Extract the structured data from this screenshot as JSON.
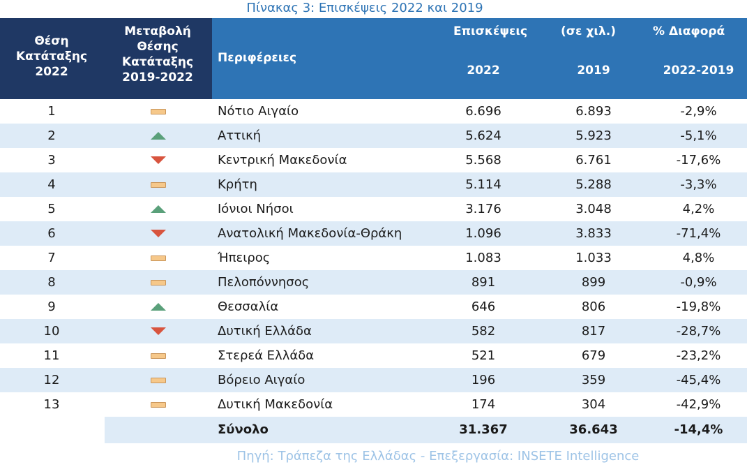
{
  "title": "Πίνακας 3: Επισκέψεις 2022 και 2019",
  "header": {
    "rank_line1": "Θέση",
    "rank_line2": "Κατάταξης",
    "rank_line3": "2022",
    "change_line1": "Μεταβολή",
    "change_line2": "Θέσης",
    "change_line3": "Κατάταξης",
    "change_line4": "2019-2022",
    "region": "Περιφέρειες",
    "visits": "Επισκέψεις",
    "thousands": "(σε χιλ.)",
    "diff": "% Διαφορά",
    "year_2022": "2022",
    "year_2019": "2019",
    "diff_period": "2022-2019"
  },
  "rows": [
    {
      "rank": "1",
      "change": "equal",
      "region": "Νότιο Αιγαίο",
      "v2022": "6.696",
      "v2019": "6.893",
      "diff": "-2,9%"
    },
    {
      "rank": "2",
      "change": "up",
      "region": "Αττική",
      "v2022": "5.624",
      "v2019": "5.923",
      "diff": "-5,1%"
    },
    {
      "rank": "3",
      "change": "down",
      "region": "Κεντρική Μακεδονία",
      "v2022": "5.568",
      "v2019": "6.761",
      "diff": "-17,6%"
    },
    {
      "rank": "4",
      "change": "equal",
      "region": "Κρήτη",
      "v2022": "5.114",
      "v2019": "5.288",
      "diff": "-3,3%"
    },
    {
      "rank": "5",
      "change": "up",
      "region": "Ιόνιοι Νήσοι",
      "v2022": "3.176",
      "v2019": "3.048",
      "diff": "4,2%"
    },
    {
      "rank": "6",
      "change": "down",
      "region": "Ανατολική Μακεδονία-Θράκη",
      "v2022": "1.096",
      "v2019": "3.833",
      "diff": "-71,4%"
    },
    {
      "rank": "7",
      "change": "equal",
      "region": "Ήπειρος",
      "v2022": "1.083",
      "v2019": "1.033",
      "diff": "4,8%"
    },
    {
      "rank": "8",
      "change": "equal",
      "region": "Πελοπόννησος",
      "v2022": "891",
      "v2019": "899",
      "diff": "-0,9%"
    },
    {
      "rank": "9",
      "change": "up",
      "region": "Θεσσαλία",
      "v2022": "646",
      "v2019": "806",
      "diff": "-19,8%"
    },
    {
      "rank": "10",
      "change": "down",
      "region": "Δυτική Ελλάδα",
      "v2022": "582",
      "v2019": "817",
      "diff": "-28,7%"
    },
    {
      "rank": "11",
      "change": "equal",
      "region": "Στερεά Ελλάδα",
      "v2022": "521",
      "v2019": "679",
      "diff": "-23,2%"
    },
    {
      "rank": "12",
      "change": "equal",
      "region": "Βόρειο Αιγαίο",
      "v2022": "196",
      "v2019": "359",
      "diff": "-45,4%"
    },
    {
      "rank": "13",
      "change": "equal",
      "region": "Δυτική Μακεδονία",
      "v2022": "174",
      "v2019": "304",
      "diff": "-42,9%"
    }
  ],
  "total": {
    "label": "Σύνολο",
    "v2022": "31.367",
    "v2019": "36.643",
    "diff": "-14,4%"
  },
  "source": "Πηγή: Τράπεζα της Ελλάδας - Επεξεργασία: INSETE Intelligence",
  "colors": {
    "header_dark": "#1f3864",
    "header_blue": "#2e74b5",
    "row_alt": "#deebf7",
    "up": "#5aa07a",
    "down": "#d8543e",
    "equal": "#f6c88a"
  }
}
